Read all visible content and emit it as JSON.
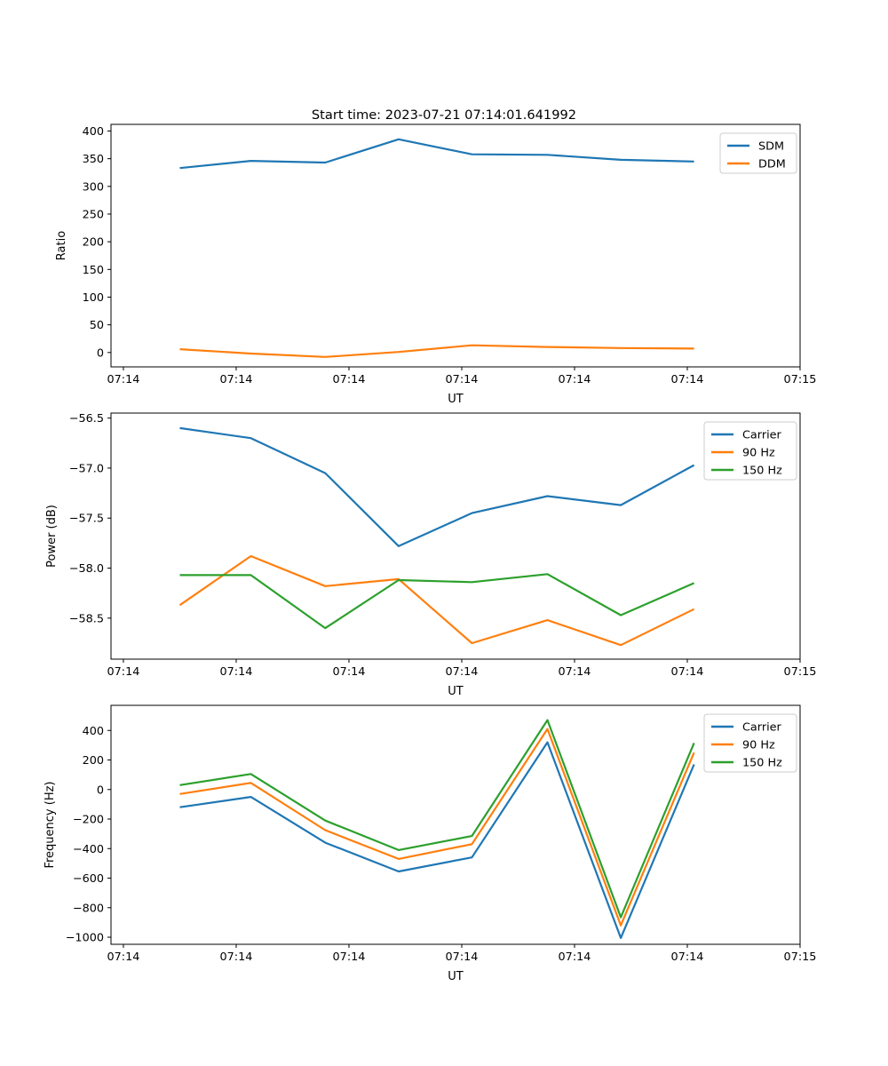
{
  "figure": {
    "title": "Start time: 2023-07-21 07:14:01.641992",
    "background": "#ffffff"
  },
  "colors": {
    "axis": "#000000",
    "legend_border": "#cccccc",
    "series_blue": "#1f77b4",
    "series_orange": "#ff7f0e",
    "series_green": "#2ca02c"
  },
  "chart_data": [
    {
      "id": "ratio",
      "type": "line",
      "title": "Start time: 2023-07-21 07:14:01.641992",
      "xlabel": "UT",
      "ylabel": "Ratio",
      "grid": false,
      "legend_position": "upper right",
      "x_tick_labels": [
        "07:14",
        "07:14",
        "07:14",
        "07:14",
        "07:14",
        "07:14",
        "07:15"
      ],
      "x_tick_seconds": [
        0,
        10,
        20,
        30,
        40,
        50,
        60
      ],
      "xlim_seconds": [
        -1.1,
        60.0
      ],
      "ylim": [
        -26,
        412
      ],
      "y_ticks": [
        0,
        50,
        100,
        150,
        200,
        250,
        300,
        350,
        400
      ],
      "y_tick_labels": [
        "0",
        "50",
        "100",
        "150",
        "200",
        "250",
        "300",
        "350",
        "400"
      ],
      "x_seconds": [
        5.0,
        11.3,
        17.9,
        24.4,
        30.9,
        37.6,
        44.1,
        50.6
      ],
      "series": [
        {
          "name": "SDM",
          "color": "#1f77b4",
          "values": [
            333,
            346,
            343,
            385,
            358,
            357,
            348,
            345
          ]
        },
        {
          "name": "DDM",
          "color": "#ff7f0e",
          "values": [
            6,
            -2,
            -8,
            1,
            13,
            10,
            8,
            7
          ]
        }
      ]
    },
    {
      "id": "power",
      "type": "line",
      "title": "",
      "xlabel": "UT",
      "ylabel": "Power (dB)",
      "grid": false,
      "legend_position": "upper right",
      "x_tick_labels": [
        "07:14",
        "07:14",
        "07:14",
        "07:14",
        "07:14",
        "07:14",
        "07:15"
      ],
      "x_tick_seconds": [
        0,
        10,
        20,
        30,
        40,
        50,
        60
      ],
      "xlim_seconds": [
        -1.1,
        60.0
      ],
      "ylim": [
        -58.91,
        -56.45
      ],
      "y_ticks": [
        -58.5,
        -58.0,
        -57.5,
        -57.0,
        -56.5
      ],
      "y_tick_labels": [
        "−58.5",
        "−58.0",
        "−57.5",
        "−57.0",
        "−56.5"
      ],
      "x_seconds": [
        5.0,
        11.3,
        17.9,
        24.4,
        30.9,
        37.6,
        44.1,
        50.6
      ],
      "series": [
        {
          "name": "Carrier",
          "color": "#1f77b4",
          "values": [
            -56.6,
            -56.7,
            -57.05,
            -57.78,
            -57.45,
            -57.28,
            -57.37,
            -56.97
          ]
        },
        {
          "name": "90 Hz",
          "color": "#ff7f0e",
          "values": [
            -58.37,
            -57.88,
            -58.18,
            -58.11,
            -58.75,
            -58.52,
            -58.77,
            -58.41
          ]
        },
        {
          "name": "150 Hz",
          "color": "#2ca02c",
          "values": [
            -58.07,
            -58.07,
            -58.6,
            -58.12,
            -58.14,
            -58.06,
            -58.47,
            -58.15
          ]
        }
      ]
    },
    {
      "id": "frequency",
      "type": "line",
      "title": "",
      "xlabel": "UT",
      "ylabel": "Frequency (Hz)",
      "grid": false,
      "legend_position": "upper right",
      "x_tick_labels": [
        "07:14",
        "07:14",
        "07:14",
        "07:14",
        "07:14",
        "07:14",
        "07:15"
      ],
      "x_tick_seconds": [
        0,
        10,
        20,
        30,
        40,
        50,
        60
      ],
      "xlim_seconds": [
        -1.1,
        60.0
      ],
      "ylim": [
        -1048,
        570
      ],
      "y_ticks": [
        -1000,
        -800,
        -600,
        -400,
        -200,
        0,
        200,
        400
      ],
      "y_tick_labels": [
        "−1000",
        "−800",
        "−600",
        "−400",
        "−200",
        "0",
        "200",
        "400"
      ],
      "x_seconds": [
        5.0,
        11.3,
        17.9,
        24.4,
        30.9,
        37.6,
        44.1,
        50.6
      ],
      "series": [
        {
          "name": "Carrier",
          "color": "#1f77b4",
          "values": [
            -120,
            -50,
            -360,
            -555,
            -460,
            320,
            -1005,
            170
          ]
        },
        {
          "name": "90 Hz",
          "color": "#ff7f0e",
          "values": [
            -30,
            45,
            -275,
            -470,
            -370,
            410,
            -920,
            250
          ]
        },
        {
          "name": "150 Hz",
          "color": "#2ca02c",
          "values": [
            30,
            105,
            -210,
            -410,
            -315,
            470,
            -865,
            315
          ]
        }
      ]
    }
  ]
}
